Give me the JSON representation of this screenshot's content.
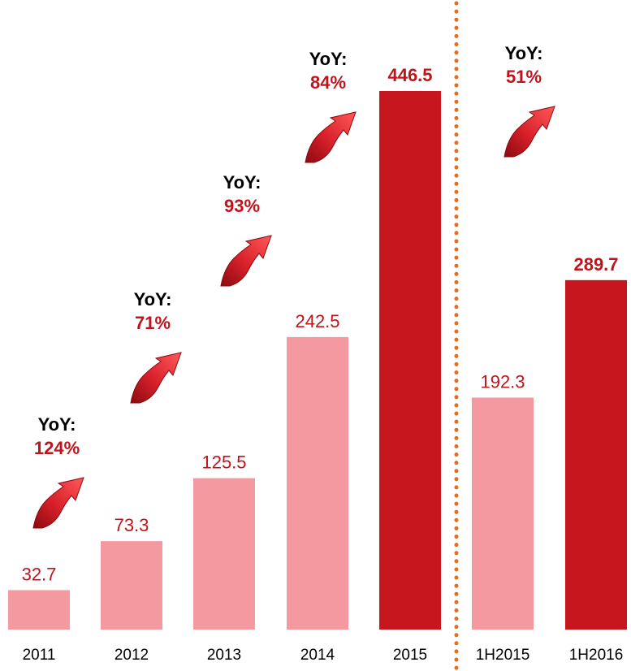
{
  "chart_data": {
    "type": "bar",
    "categories": [
      "2011",
      "2012",
      "2013",
      "2014",
      "2015",
      "1H2015",
      "1H2016"
    ],
    "values": [
      32.7,
      73.3,
      125.5,
      242.5,
      446.5,
      192.3,
      289.7
    ],
    "value_labels": [
      "32.7",
      "73.3",
      "125.5",
      "242.5",
      "446.5",
      "192.3",
      "289.7"
    ],
    "highlighted": [
      false,
      false,
      false,
      false,
      true,
      false,
      true
    ],
    "ylim": [
      0,
      480
    ],
    "grid": false,
    "legend": "none",
    "separator_after_category": "2015",
    "yoy_annotations": [
      {
        "title": "YoY:",
        "value": "124%",
        "between": [
          "2011",
          "2012"
        ]
      },
      {
        "title": "YoY:",
        "value": "71%",
        "between": [
          "2012",
          "2013"
        ]
      },
      {
        "title": "YoY:",
        "value": "93%",
        "between": [
          "2013",
          "2014"
        ]
      },
      {
        "title": "YoY:",
        "value": "84%",
        "between": [
          "2014",
          "2015"
        ]
      },
      {
        "title": "YoY:",
        "value": "51%",
        "between": [
          "1H2015",
          "1H2016"
        ]
      }
    ]
  },
  "colors": {
    "bar_light": "#f4999f",
    "bar_dark": "#c8161f",
    "label_red": "#c0141c",
    "separator": "#e07020",
    "arrow_light": "#e8313a",
    "arrow_dark": "#8a0a10"
  },
  "icons": {
    "yoy_arrow": "curved-up-arrow-icon"
  }
}
